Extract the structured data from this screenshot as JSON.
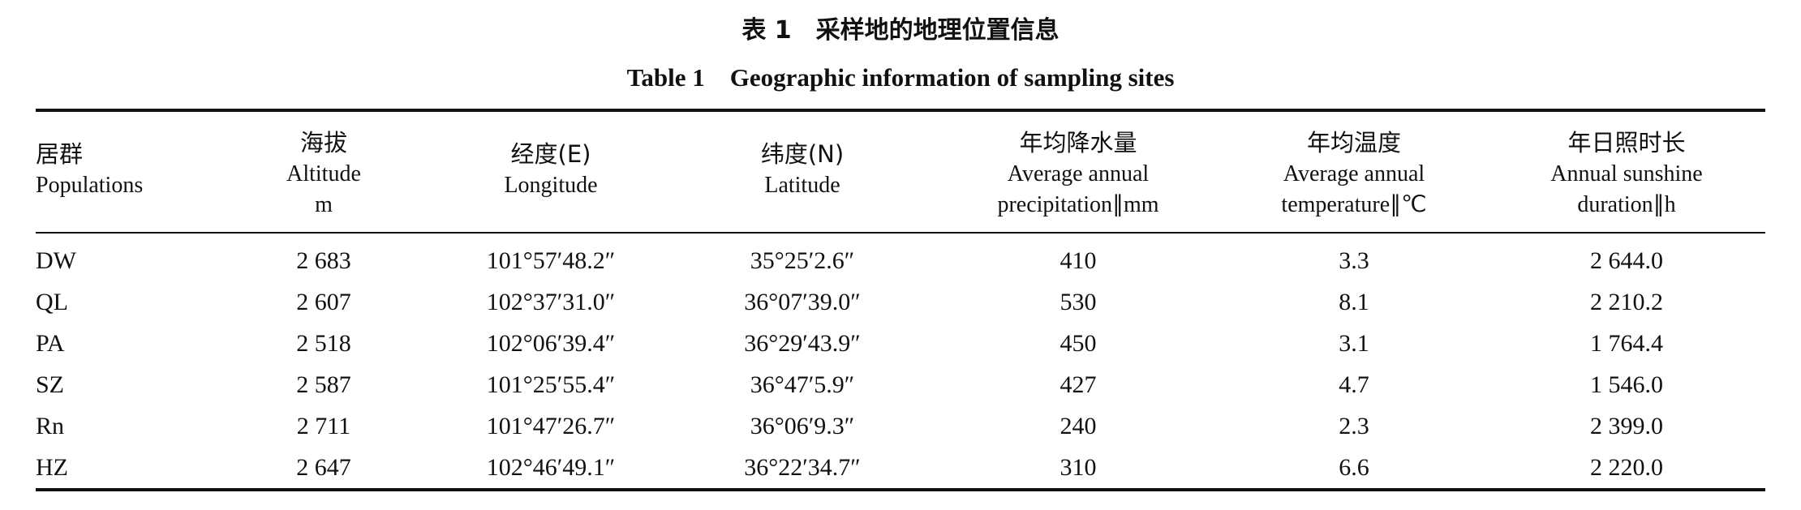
{
  "title_cn": "表 1　采样地的地理位置信息",
  "title_en": "Table 1　Geographic information of sampling sites",
  "columns": [
    {
      "cn": "居群",
      "en": [
        "Populations"
      ]
    },
    {
      "cn": "海拔",
      "en": [
        "Altitude",
        "m"
      ]
    },
    {
      "cn": "经度(E)",
      "en": [
        "Longitude"
      ]
    },
    {
      "cn": "纬度(N)",
      "en": [
        "Latitude"
      ]
    },
    {
      "cn": "年均降水量",
      "en": [
        "Average annual",
        "precipitation∥mm"
      ]
    },
    {
      "cn": "年均温度",
      "en": [
        "Average annual",
        "temperature∥℃"
      ]
    },
    {
      "cn": "年日照时长",
      "en": [
        "Annual sunshine",
        "duration∥h"
      ]
    }
  ],
  "rows": [
    [
      "DW",
      "2 683",
      "101°57′48.2″",
      "35°25′2.6″",
      "410",
      "3.3",
      "2 644.0"
    ],
    [
      "QL",
      "2 607",
      "102°37′31.0″",
      "36°07′39.0″",
      "530",
      "8.1",
      "2 210.2"
    ],
    [
      "PA",
      "2 518",
      "102°06′39.4″",
      "36°29′43.9″",
      "450",
      "3.1",
      "1 764.4"
    ],
    [
      "SZ",
      "2 587",
      "101°25′55.4″",
      "36°47′5.9″",
      "427",
      "4.7",
      "1 546.0"
    ],
    [
      "Rn",
      "2 711",
      "101°47′26.7″",
      "36°06′9.3″",
      "240",
      "2.3",
      "2 399.0"
    ],
    [
      "HZ",
      "2 647",
      "102°46′49.1″",
      "36°22′34.7″",
      "310",
      "6.6",
      "2 220.0"
    ]
  ]
}
